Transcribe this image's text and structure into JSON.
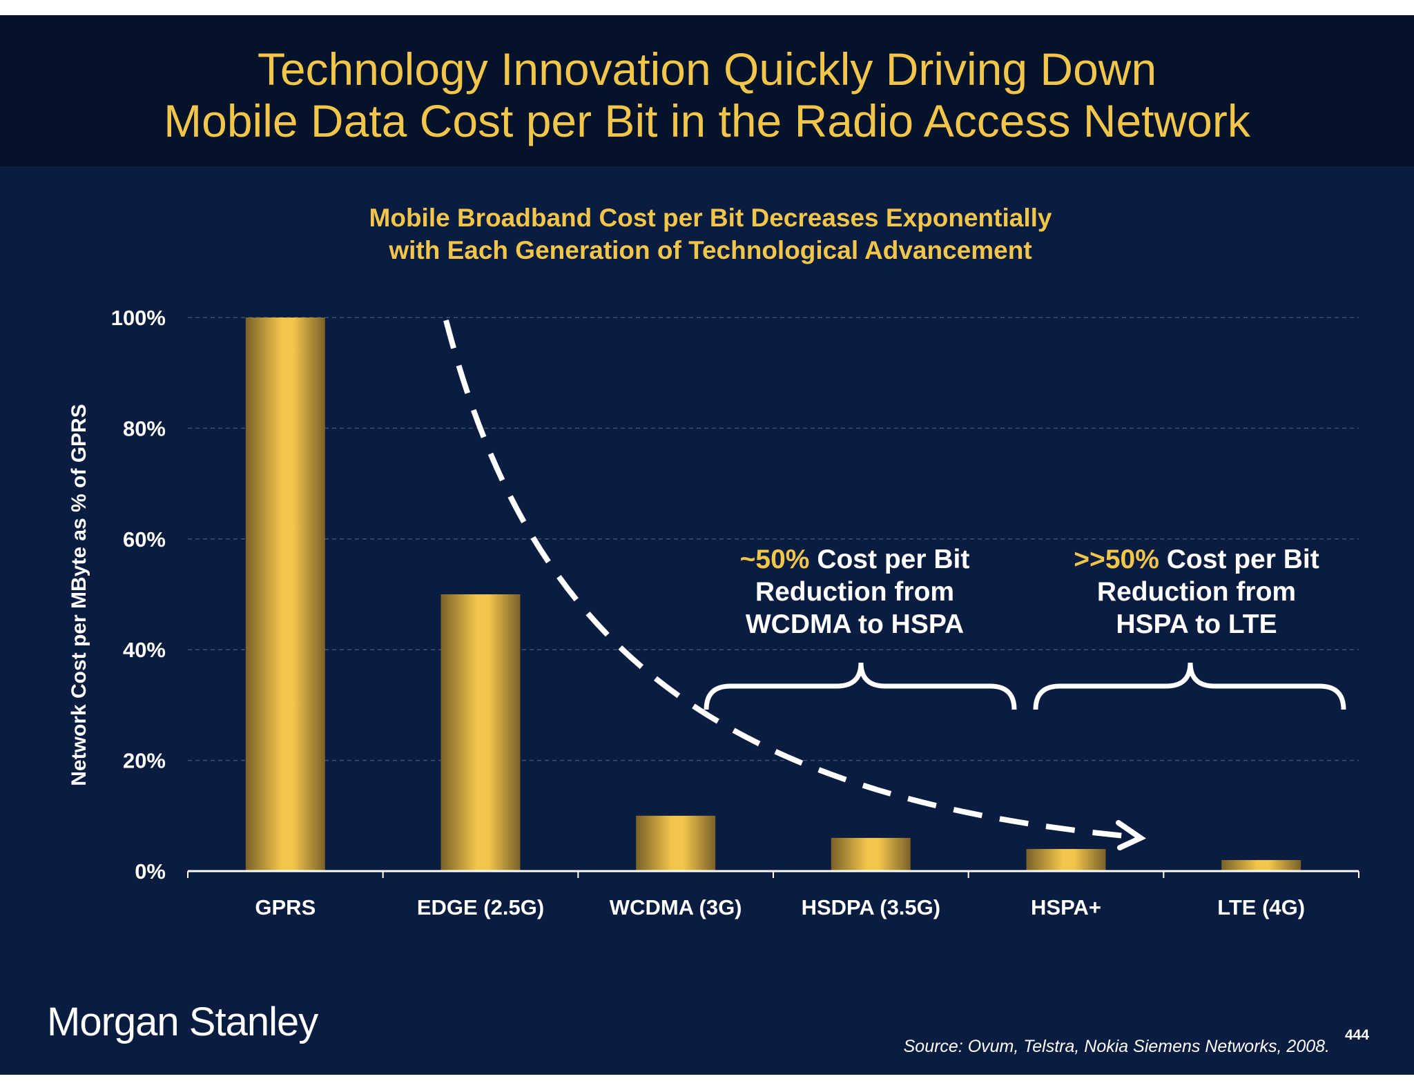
{
  "header": {
    "title_line1": "Technology Innovation Quickly Driving Down",
    "title_line2": "Mobile Data Cost per Bit in the Radio Access Network"
  },
  "chart_data": {
    "type": "bar",
    "title_line1": "Mobile Broadband Cost per Bit Decreases Exponentially",
    "title_line2": "with Each Generation of Technological Advancement",
    "ylabel": "Network Cost per MByte as % of GPRS",
    "xlabel": "",
    "categories": [
      "GPRS",
      "EDGE (2.5G)",
      "WCDMA (3G)",
      "HSDPA (3.5G)",
      "HSPA+",
      "LTE (4G)"
    ],
    "values": [
      100,
      50,
      10,
      6,
      4,
      2
    ],
    "ylim": [
      0,
      100
    ],
    "yticks": [
      "0%",
      "20%",
      "40%",
      "60%",
      "80%",
      "100%"
    ],
    "grid": true,
    "bar_color": "#f2c54b",
    "trend_arrow": "dashed white curve, decreasing",
    "annotations": [
      {
        "highlight": "~50%",
        "text_line1": " Cost per Bit",
        "text_line2": "Reduction from",
        "text_line3": "WCDMA to HSPA",
        "spans": [
          "WCDMA (3G)",
          "HSDPA (3.5G)"
        ]
      },
      {
        "highlight": ">>50%",
        "text_line1": " Cost per Bit",
        "text_line2": "Reduction from",
        "text_line3": "HSPA to LTE",
        "spans": [
          "HSPA+",
          "LTE (4G)"
        ]
      }
    ]
  },
  "footer": {
    "logo": "Morgan Stanley",
    "source": "Source: Ovum, Telstra, Nokia Siemens Networks, 2008.",
    "page_number": "444"
  }
}
